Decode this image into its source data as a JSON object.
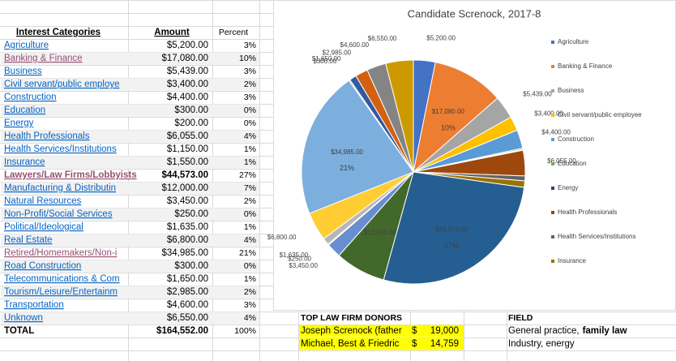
{
  "sheet": {
    "headers": [
      "Interest Categories",
      "Amount",
      "Percent"
    ],
    "rows": [
      [
        "Agriculture",
        "$5,200.00",
        "3%"
      ],
      [
        "Banking & Finance",
        "$17,080.00",
        "10%"
      ],
      [
        "Business",
        "$5,439.00",
        "3%"
      ],
      [
        "Civil servant/public employe",
        "$3,400.00",
        "2%"
      ],
      [
        "Construction",
        "$4,400.00",
        "3%"
      ],
      [
        "Education",
        "$300.00",
        "0%"
      ],
      [
        "Energy",
        "$200.00",
        "0%"
      ],
      [
        "Health Professionals",
        "$6,055.00",
        "4%"
      ],
      [
        "Health Services/Institutions",
        "$1,150.00",
        "1%"
      ],
      [
        "Insurance",
        "$1,550.00",
        "1%"
      ],
      [
        "Lawyers/Law Firms/Lobbyists",
        "$44,573.00",
        "27%"
      ],
      [
        "Manufacturing & Distributin",
        "$12,000.00",
        "7%"
      ],
      [
        "Natural Resources",
        "$3,450.00",
        "2%"
      ],
      [
        "Non-Profit/Social Services",
        "$250.00",
        "0%"
      ],
      [
        "Political/Ideological",
        "$1,635.00",
        "1%"
      ],
      [
        "Real Estate",
        "$6,800.00",
        "4%"
      ],
      [
        "Retired/Homemakers/Non-i",
        "$34,985.00",
        "21%"
      ],
      [
        "Road Construction",
        "$300.00",
        "0%"
      ],
      [
        "Telecommunications & Com",
        "$1,650.00",
        "1%"
      ],
      [
        "Tourism/Leisure/Entertainm",
        "$2,985.00",
        "2%"
      ],
      [
        "Transportation",
        "$4,600.00",
        "3%"
      ],
      [
        "Unknown",
        "$6,550.00",
        "4%"
      ]
    ],
    "total": [
      "TOTAL",
      "$164,552.00",
      "100%"
    ]
  },
  "chart_data": {
    "type": "pie",
    "title": "Candidate Screnock, 2017-8",
    "categories": [
      "Agriculture",
      "Banking & Finance",
      "Business",
      "Civil servant/public employee",
      "Construction",
      "Education",
      "Energy",
      "Health Professionals",
      "Health Services/Institutions",
      "Insurance",
      null,
      null,
      null,
      null,
      null,
      null,
      null,
      null,
      null,
      null,
      null,
      null
    ],
    "values": [
      5200,
      17080,
      5439,
      3400,
      4400,
      300,
      200,
      6055,
      1150,
      1550,
      44573,
      12000,
      3450,
      250,
      1635,
      6800,
      34985,
      300,
      1650,
      2985,
      4600,
      6550
    ],
    "value_labels": [
      "$5,200.00",
      "$17,080.00",
      "$5,439.00",
      "$3,400.00",
      "$4,400.00",
      null,
      null,
      "$6,055.00",
      null,
      null,
      "$44,573.00",
      "$12,000.00",
      "$3,450.00",
      "$250.00",
      "$1,635.00",
      "$6,800.00",
      "$34,985.00",
      "$300.00",
      "$1,650.00",
      "$2,985.00",
      "$4,600.00",
      "$6,550.00"
    ],
    "percent_labels": [
      null,
      "10%",
      null,
      null,
      null,
      null,
      null,
      null,
      null,
      null,
      "27%",
      null,
      null,
      null,
      null,
      null,
      "21%",
      null,
      null,
      null,
      null,
      null
    ],
    "colors": [
      "#4472c4",
      "#ed7d31",
      "#a5a5a5",
      "#ffc000",
      "#5b9bd5",
      "#70ad47",
      "#264478",
      "#9e480e",
      "#636363",
      "#997300",
      "#255e91",
      "#43682b",
      "#698ed0",
      "#f1975a",
      "#b7b7b7",
      "#ffcd33",
      "#7cafdd",
      "#8cc168",
      "#335aa1",
      "#d26012",
      "#848484",
      "#cc9a00"
    ],
    "legend": "right"
  },
  "donors": {
    "title": "TOP LAW FIRM DONORS",
    "rows": [
      [
        "Joseph Screnock (father",
        "$",
        "19,000"
      ],
      [
        "Michael, Best & Friedric",
        "$",
        "14,759"
      ]
    ]
  },
  "field": {
    "title": "FIELD",
    "rows": [
      [
        "General practice,",
        "family law"
      ],
      [
        "Industry, energy"
      ]
    ]
  }
}
